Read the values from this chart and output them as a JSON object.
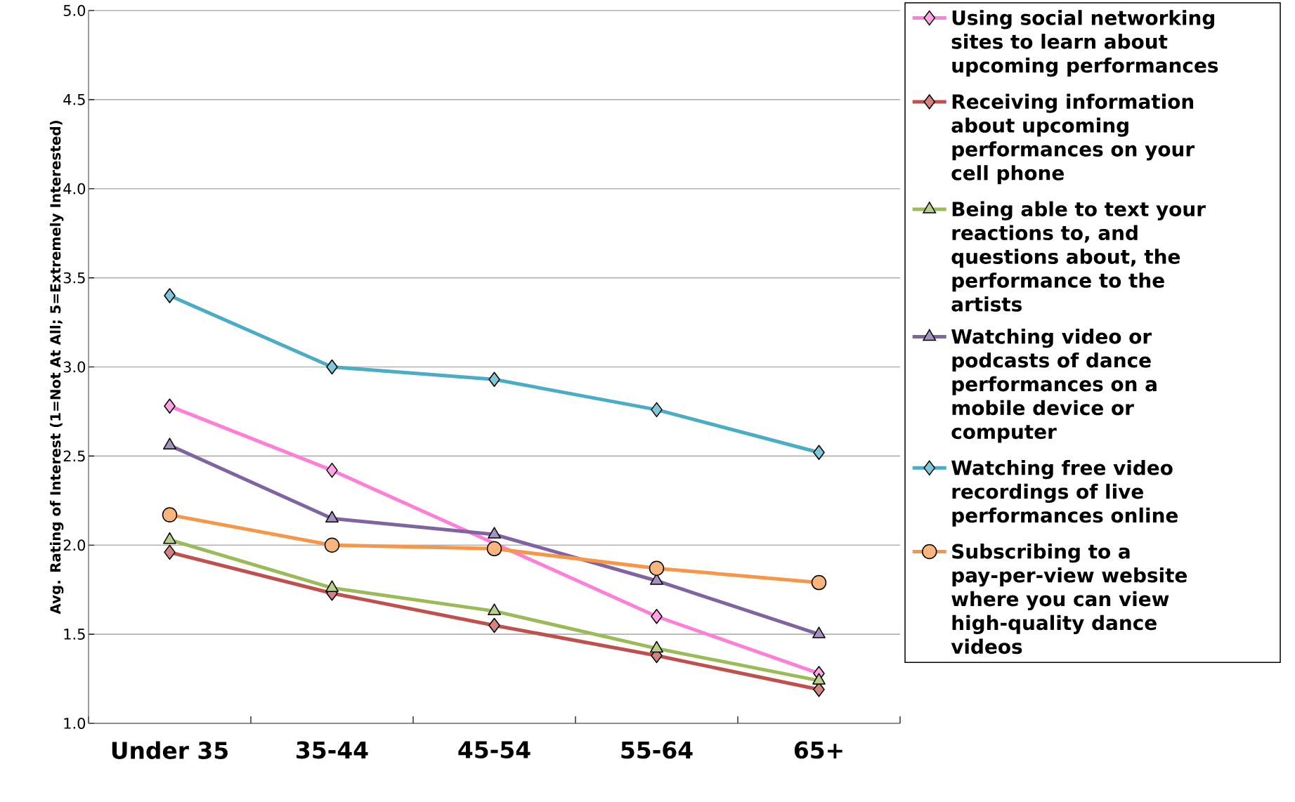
{
  "chart_data": {
    "type": "line",
    "ylabel": "Avg. Rating of Interest (1=Not At All; 5=Extremely Interested)",
    "categories": [
      "Under 35",
      "35-44",
      "45-54",
      "55-64",
      "65+"
    ],
    "ylim": [
      1,
      5
    ],
    "yticks": [
      {
        "value": 1,
        "label": "1.0"
      },
      {
        "value": 1.5,
        "label": "1.5"
      },
      {
        "value": 2,
        "label": "2.0"
      },
      {
        "value": 2.5,
        "label": "2.5"
      },
      {
        "value": 3,
        "label": "3.0"
      },
      {
        "value": 3.5,
        "label": "3.5"
      },
      {
        "value": 4,
        "label": "4.0"
      },
      {
        "value": 4.5,
        "label": "4.5"
      },
      {
        "value": 5,
        "label": "5.0"
      }
    ],
    "grid": "y",
    "legend": "right",
    "series": [
      {
        "name": "Using social networking sites to learn about upcoming performances",
        "color": "#ff7fd8",
        "marker": "diamond",
        "values": [
          2.78,
          2.42,
          null,
          1.6,
          1.28
        ]
      },
      {
        "name": "Receiving information about upcoming performances on your cell phone",
        "color": "#c0504d",
        "marker": "diamond",
        "values": [
          1.96,
          1.73,
          1.55,
          1.38,
          1.19
        ]
      },
      {
        "name": "Being able to text your reactions to, and questions about, the performance to the artists",
        "color": "#9bbb59",
        "marker": "triangle",
        "values": [
          2.03,
          1.76,
          1.63,
          1.42,
          1.24
        ]
      },
      {
        "name": "Watching video or podcasts of dance performances on a mobile device or computer",
        "color": "#8064a2",
        "marker": "triangle",
        "values": [
          2.56,
          2.15,
          2.06,
          1.8,
          1.5
        ]
      },
      {
        "name": "Watching free video recordings of live performances online",
        "color": "#4bacc6",
        "marker": "diamond",
        "values": [
          3.4,
          3.0,
          2.93,
          2.76,
          2.52
        ]
      },
      {
        "name": "Subscribing to a pay-per-view website where you can view high-quality dance videos",
        "color": "#f79646",
        "marker": "circle",
        "values": [
          2.17,
          2.0,
          1.98,
          1.87,
          1.79
        ]
      }
    ]
  }
}
